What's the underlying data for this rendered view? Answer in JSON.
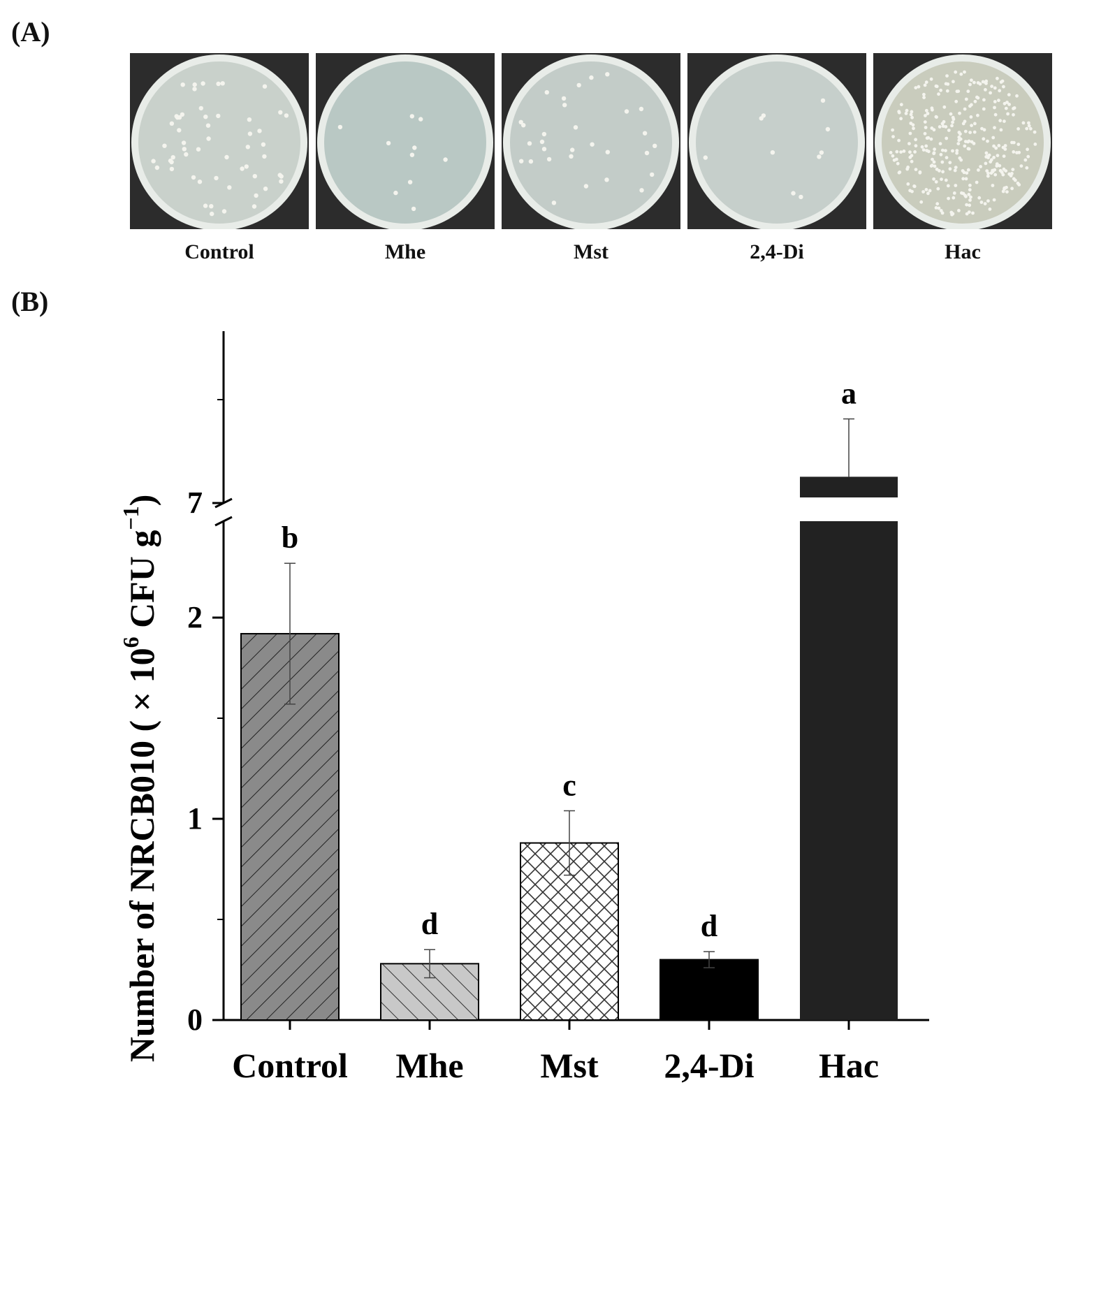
{
  "panels": {
    "a_label": "(A)",
    "b_label": "(B)"
  },
  "plates": [
    {
      "label": "Control",
      "colonies": "medium",
      "agar": "#c9d1cb"
    },
    {
      "label": "Mhe",
      "colonies": "few",
      "agar": "#b9c8c4"
    },
    {
      "label": "Mst",
      "colonies": "sparse",
      "agar": "#c3ccc8"
    },
    {
      "label": "2,4-Di",
      "colonies": "few",
      "agar": "#c6cfcb"
    },
    {
      "label": "Hac",
      "colonies": "dense",
      "agar": "#c9ccbd"
    }
  ],
  "chart_data": {
    "type": "bar",
    "ylabel": "Number of NRCB010 ( × 10",
    "ylabel_exp": "6",
    "ylabel_unit": " CFU g",
    "ylabel_unit_exp": "−1",
    "ylabel_end": ")",
    "categories": [
      "Control",
      "Mhe",
      "Mst",
      "2,4-Di",
      "Hac"
    ],
    "values": [
      1.92,
      0.28,
      0.88,
      0.3,
      7.1
    ],
    "errors": [
      0.35,
      0.07,
      0.16,
      0.04,
      0.3
    ],
    "significance": [
      "b",
      "d",
      "c",
      "d",
      "a"
    ],
    "fills": [
      "diagonal-hatch-dark",
      "diagonal-hatch-light",
      "crosshatch",
      "solid-black",
      "solid-dark"
    ],
    "colors": {
      "control": "#8a8a8a",
      "mhe": "#c8c8c8",
      "mst": "#ffffff",
      "di": "#000000",
      "hac": "#222222"
    },
    "yaxis_lower": {
      "range": [
        0,
        2.3
      ],
      "ticks": [
        0,
        1,
        2
      ]
    },
    "yaxis_upper": {
      "range": [
        7,
        8
      ],
      "ticks": [
        7,
        8
      ]
    },
    "axis_break": true,
    "grid": false,
    "legend": "none"
  }
}
